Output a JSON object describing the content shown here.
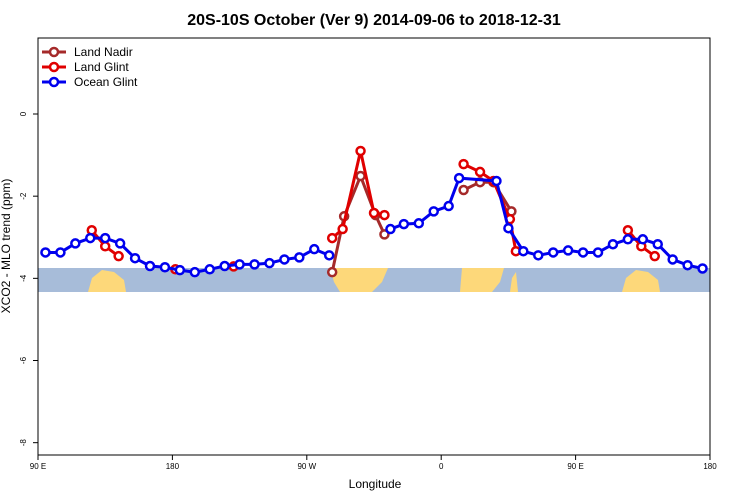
{
  "chart_data": {
    "type": "line",
    "title": "20S-10S October (Ver 9)   2014-09-06 to 2018-12-31",
    "x_label": "Longitude",
    "y_label": "XCO2 - MLO trend (ppm)",
    "xlim": [
      90,
      540
    ],
    "ylim": [
      -8.3,
      1.85
    ],
    "xticks": [
      {
        "value": 90,
        "label": "90 E"
      },
      180,
      {
        "value": 270,
        "label": "90 W"
      },
      {
        "value": 360,
        "label": "0"
      },
      {
        "value": 450,
        "label": "90 E"
      },
      {
        "value": 540,
        "label": "180"
      }
    ],
    "yticks": [
      0,
      -2,
      -4,
      -6,
      -8
    ],
    "legend": "top-left",
    "series": [
      {
        "name": "Land Nadir",
        "color": "#a52a2a",
        "x": [
          287,
          295,
          306,
          316,
          322,
          null,
          375,
          386,
          395,
          407
        ],
        "values": [
          -3.85,
          -2.49,
          -1.51,
          -2.46,
          -2.93,
          null,
          -1.85,
          -1.66,
          -1.66,
          -2.37
        ]
      },
      {
        "name": "Land Glint",
        "color": "#e00000",
        "x": [
          126,
          135,
          144,
          null,
          182,
          null,
          221,
          null,
          287,
          294,
          306,
          315,
          322,
          null,
          375,
          386,
          395,
          406,
          410,
          null,
          485,
          494,
          503
        ],
        "values": [
          -2.83,
          -3.22,
          -3.46,
          null,
          -3.78,
          null,
          -3.71,
          null,
          -3.02,
          -2.8,
          -0.9,
          -2.41,
          -2.46,
          null,
          -1.22,
          -1.41,
          -1.63,
          -2.56,
          -3.34,
          null,
          -2.83,
          -3.22,
          -3.46
        ]
      },
      {
        "name": "Ocean Glint",
        "color": "#0000ee",
        "x": [
          95,
          105,
          115,
          125,
          135,
          145,
          155,
          165,
          175,
          185,
          195,
          205,
          215,
          225,
          235,
          245,
          255,
          265,
          275,
          285,
          null,
          326,
          335,
          345,
          355,
          365,
          372,
          397,
          405,
          415,
          425,
          435,
          445,
          455,
          465,
          475,
          485,
          495,
          505,
          515,
          525,
          535
        ],
        "values": [
          -3.37,
          -3.37,
          -3.15,
          -3.02,
          -3.02,
          -3.15,
          -3.51,
          -3.7,
          -3.73,
          -3.8,
          -3.85,
          -3.78,
          -3.7,
          -3.66,
          -3.66,
          -3.63,
          -3.54,
          -3.49,
          -3.29,
          -3.44,
          null,
          -2.8,
          -2.68,
          -2.66,
          -2.37,
          -2.24,
          -1.56,
          -1.63,
          -2.78,
          -3.34,
          -3.44,
          -3.37,
          -3.32,
          -3.37,
          -3.37,
          -3.17,
          -3.05,
          -3.05,
          -3.17,
          -3.54,
          -3.68,
          -3.76
        ]
      }
    ]
  }
}
